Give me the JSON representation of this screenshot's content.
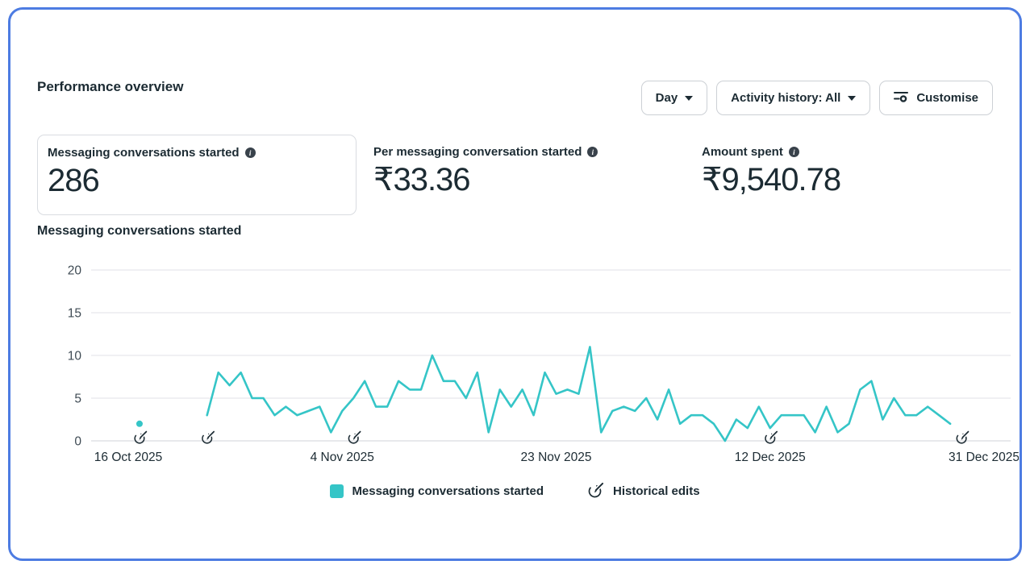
{
  "header": {
    "title": "Performance overview"
  },
  "toolbar": {
    "day_dropdown": {
      "label": "Day"
    },
    "activity_dropdown": {
      "label": "Activity history: All"
    },
    "customise_button": {
      "label": "Customise"
    }
  },
  "metrics": [
    {
      "label": "Messaging conversations started",
      "value": "286",
      "selected": true
    },
    {
      "label": "Per messaging conversation started",
      "value": "₹33.36",
      "selected": false
    },
    {
      "label": "Amount spent",
      "value": "₹9,540.78",
      "selected": false
    }
  ],
  "chart_section_title": "Messaging conversations started",
  "legend": {
    "series_label": "Messaging conversations started",
    "edits_label": "Historical edits"
  },
  "colors": {
    "series_teal": "#35c5c7",
    "frame_blue": "#4d7ce2",
    "text_dark": "#1c2b33",
    "grid_gray": "#e6e8ec",
    "axis_gray": "#d9dce1"
  },
  "chart_data": {
    "type": "line",
    "title": "Messaging conversations started",
    "series_name": "Messaging conversations started",
    "color": "#35c5c7",
    "grid": true,
    "legend_position": "bottom",
    "ylim": [
      0,
      20
    ],
    "y_ticks": [
      0,
      5,
      10,
      15,
      20
    ],
    "x_domain_days": 77,
    "x_ticks": [
      {
        "label": "16 Oct 2025",
        "day": 0
      },
      {
        "label": "4 Nov 2025",
        "day": 19
      },
      {
        "label": "23 Nov 2025",
        "day": 38
      },
      {
        "label": "12 Dec 2025",
        "day": 57
      },
      {
        "label": "31 Dec 2025",
        "day": 76
      }
    ],
    "historical_edit_days": [
      1,
      7,
      20,
      57,
      74
    ],
    "values": [
      null,
      2,
      null,
      null,
      null,
      null,
      null,
      3,
      8,
      6.5,
      8,
      5,
      5,
      3,
      4,
      3,
      3.5,
      4,
      1,
      3.5,
      5,
      7,
      4,
      4,
      7,
      6,
      6,
      10,
      7,
      7,
      5,
      8,
      1,
      6,
      4,
      6,
      3,
      8,
      5.5,
      6,
      5.5,
      11,
      1,
      3.5,
      4,
      3.5,
      5,
      2.5,
      6,
      2,
      3,
      3,
      2,
      0,
      2.5,
      1.5,
      4,
      1.5,
      3,
      3,
      3,
      1,
      4,
      1,
      2,
      6,
      7,
      2.5,
      5,
      3,
      3,
      4,
      3,
      2,
      null,
      null,
      null
    ]
  }
}
